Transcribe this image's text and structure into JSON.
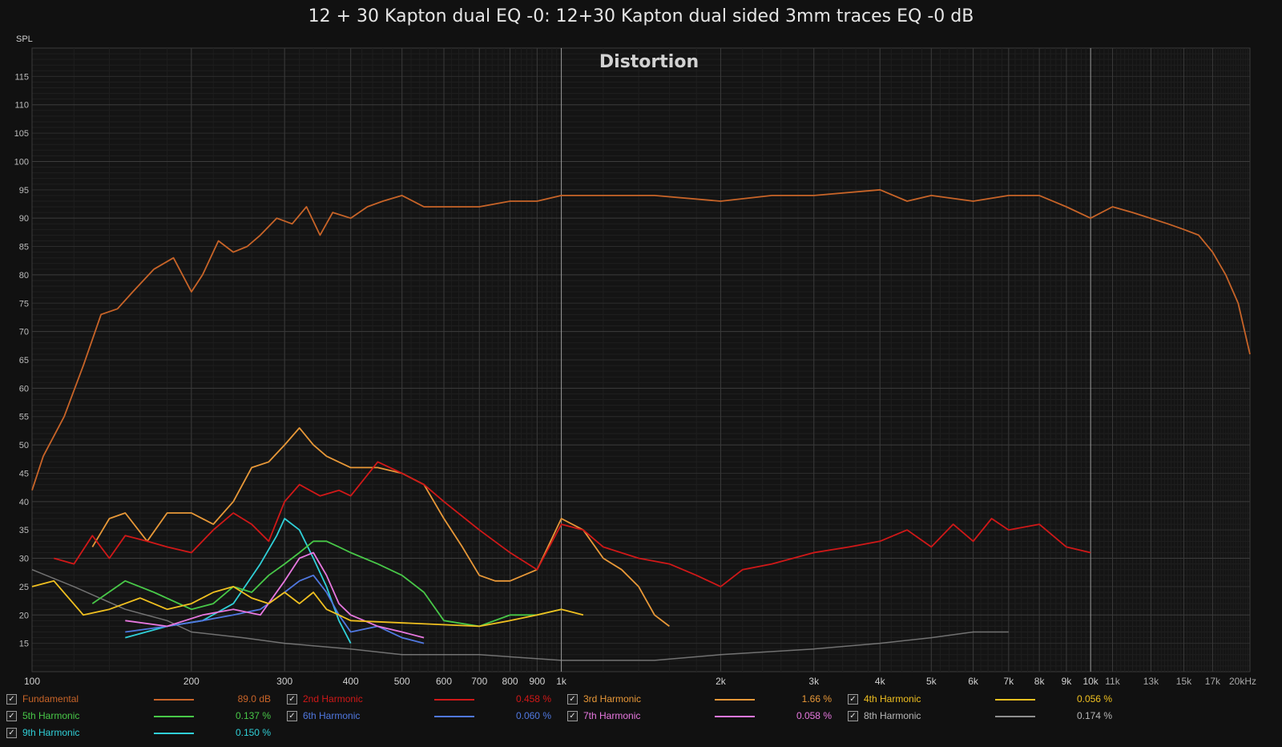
{
  "header": {
    "title": "12 + 30 Kapton dual EQ -0: 12+30 Kapton dual sided 3mm traces EQ -0 dB"
  },
  "chart_data": {
    "type": "line",
    "title": "Distortion",
    "ylabel": "SPL",
    "x_scale": "log",
    "xlim": [
      100,
      20000
    ],
    "ylim": [
      10,
      120
    ],
    "x_ticks": [
      {
        "v": 100,
        "label": "100"
      },
      {
        "v": 200,
        "label": "200"
      },
      {
        "v": 300,
        "label": "300"
      },
      {
        "v": 400,
        "label": "400"
      },
      {
        "v": 500,
        "label": "500"
      },
      {
        "v": 600,
        "label": "600"
      },
      {
        "v": 700,
        "label": "700"
      },
      {
        "v": 800,
        "label": "800"
      },
      {
        "v": 900,
        "label": "900"
      },
      {
        "v": 1000,
        "label": "1k"
      },
      {
        "v": 2000,
        "label": "2k"
      },
      {
        "v": 3000,
        "label": "3k"
      },
      {
        "v": 4000,
        "label": "4k"
      },
      {
        "v": 5000,
        "label": "5k"
      },
      {
        "v": 6000,
        "label": "6k"
      },
      {
        "v": 7000,
        "label": "7k"
      },
      {
        "v": 8000,
        "label": "8k"
      },
      {
        "v": 9000,
        "label": "9k"
      },
      {
        "v": 10000,
        "label": "10k"
      },
      {
        "v": 11000,
        "label": "11k"
      },
      {
        "v": 13000,
        "label": "13k"
      },
      {
        "v": 15000,
        "label": "15k"
      },
      {
        "v": 17000,
        "label": "17k"
      },
      {
        "v": 20000,
        "label": "20kHz"
      }
    ],
    "y_ticks": [
      15,
      20,
      25,
      30,
      35,
      40,
      45,
      50,
      55,
      60,
      65,
      70,
      75,
      80,
      85,
      90,
      95,
      100,
      105,
      110,
      115
    ],
    "grid": true,
    "series": [
      {
        "name": "Fundamental",
        "color": "#c86428",
        "value_label": "89.0 dB",
        "x": [
          100,
          105,
          115,
          125,
          135,
          145,
          155,
          170,
          185,
          200,
          210,
          225,
          240,
          255,
          270,
          290,
          310,
          330,
          350,
          370,
          400,
          430,
          460,
          500,
          550,
          600,
          700,
          800,
          900,
          1000,
          1100,
          1200,
          1500,
          2000,
          2500,
          3000,
          4000,
          4500,
          5000,
          6000,
          7000,
          8000,
          9000,
          10000,
          11000,
          12000,
          14000,
          15000,
          16000,
          17000,
          18000,
          19000,
          20000
        ],
        "y": [
          42,
          48,
          55,
          64,
          73,
          74,
          77,
          81,
          83,
          77,
          80,
          86,
          84,
          85,
          87,
          90,
          89,
          92,
          87,
          91,
          90,
          92,
          93,
          94,
          92,
          92,
          92,
          93,
          93,
          94,
          94,
          94,
          94,
          93,
          94,
          94,
          95,
          93,
          94,
          93,
          94,
          94,
          92,
          90,
          92,
          91,
          89,
          88,
          87,
          84,
          80,
          75,
          66
        ]
      },
      {
        "name": "2nd Harmonic",
        "color": "#d01818",
        "value_label": "0.458 %",
        "x": [
          110,
          120,
          130,
          140,
          150,
          165,
          180,
          200,
          220,
          240,
          260,
          280,
          300,
          320,
          350,
          380,
          400,
          450,
          500,
          550,
          600,
          700,
          800,
          900,
          1000,
          1100,
          1200,
          1400,
          1600,
          1800,
          2000,
          2200,
          2500,
          3000,
          3500,
          4000,
          4500,
          5000,
          5500,
          6000,
          6500,
          7000,
          8000,
          9000,
          10000
        ],
        "y": [
          30,
          29,
          34,
          30,
          34,
          33,
          32,
          31,
          35,
          38,
          36,
          33,
          40,
          43,
          41,
          42,
          41,
          47,
          45,
          43,
          40,
          35,
          31,
          28,
          36,
          35,
          32,
          30,
          29,
          27,
          25,
          28,
          29,
          31,
          32,
          33,
          35,
          32,
          36,
          33,
          37,
          35,
          36,
          32,
          31
        ]
      },
      {
        "name": "3rd Harmonic",
        "color": "#e89838",
        "value_label": "1.66 %",
        "x": [
          130,
          140,
          150,
          165,
          180,
          200,
          220,
          240,
          260,
          280,
          300,
          320,
          340,
          360,
          400,
          450,
          500,
          550,
          600,
          650,
          700,
          750,
          800,
          900,
          1000,
          1100,
          1200,
          1300,
          1400,
          1500,
          1600
        ],
        "y": [
          32,
          37,
          38,
          33,
          38,
          38,
          36,
          40,
          46,
          47,
          50,
          53,
          50,
          48,
          46,
          46,
          45,
          43,
          37,
          32,
          27,
          26,
          26,
          28,
          37,
          35,
          30,
          28,
          25,
          20,
          18
        ]
      },
      {
        "name": "4th Harmonic",
        "color": "#f0c020",
        "value_label": "0.056 %",
        "x": [
          100,
          110,
          125,
          140,
          160,
          180,
          200,
          220,
          240,
          260,
          280,
          300,
          320,
          340,
          360,
          380,
          400,
          700,
          800,
          900,
          1000,
          1100
        ],
        "y": [
          25,
          26,
          20,
          21,
          23,
          21,
          22,
          24,
          25,
          23,
          22,
          24,
          22,
          24,
          21,
          20,
          19,
          18,
          19,
          20,
          21,
          20
        ]
      },
      {
        "name": "5th Harmonic",
        "color": "#48c848",
        "value_label": "0.137 %",
        "x": [
          130,
          150,
          170,
          200,
          220,
          240,
          260,
          280,
          300,
          320,
          340,
          360,
          380,
          400,
          450,
          500,
          550,
          600,
          700,
          800,
          900,
          1000
        ],
        "y": [
          22,
          26,
          24,
          21,
          22,
          25,
          24,
          27,
          29,
          31,
          33,
          33,
          32,
          31,
          29,
          27,
          24,
          19,
          18,
          20,
          20,
          21
        ]
      },
      {
        "name": "6th Harmonic",
        "color": "#5078e0",
        "value_label": "0.060 %",
        "x": [
          150,
          180,
          210,
          240,
          270,
          300,
          320,
          340,
          360,
          380,
          400,
          450,
          500,
          550
        ],
        "y": [
          17,
          18,
          19,
          20,
          21,
          24,
          26,
          27,
          24,
          20,
          17,
          18,
          16,
          15
        ]
      },
      {
        "name": "7th Harmonic",
        "color": "#e878e0",
        "value_label": "0.058 %",
        "x": [
          150,
          180,
          210,
          240,
          270,
          300,
          320,
          340,
          360,
          380,
          400,
          450,
          500,
          550
        ],
        "y": [
          19,
          18,
          20,
          21,
          20,
          26,
          30,
          31,
          27,
          22,
          20,
          18,
          17,
          16
        ]
      },
      {
        "name": "8th Harmonic",
        "color": "#909090",
        "value_label": "0.174 %",
        "x": [
          100,
          120,
          150,
          180,
          200,
          250,
          300,
          400,
          500,
          700,
          1000,
          1500,
          2000,
          3000,
          4000,
          5000,
          6000,
          7000
        ],
        "y": [
          28,
          25,
          21,
          19,
          17,
          16,
          15,
          14,
          13,
          13,
          12,
          12,
          13,
          14,
          15,
          16,
          17,
          17
        ]
      },
      {
        "name": "9th Harmonic",
        "color": "#30d0d8",
        "value_label": "0.150 %",
        "x": [
          150,
          180,
          210,
          240,
          270,
          290,
          300,
          320,
          340,
          360,
          380,
          400
        ],
        "y": [
          16,
          18,
          19,
          22,
          29,
          34,
          37,
          35,
          30,
          25,
          19,
          15
        ]
      }
    ]
  }
}
